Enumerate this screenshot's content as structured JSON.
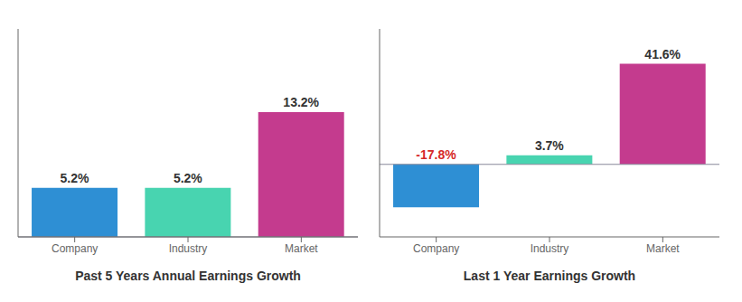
{
  "chart_data": [
    {
      "type": "bar",
      "title": "Past 5 Years Annual Earnings Growth",
      "categories": [
        "Company",
        "Industry",
        "Market"
      ],
      "values": [
        5.2,
        5.2,
        13.2
      ],
      "value_labels": [
        "5.2%",
        "5.2%",
        "13.2%"
      ],
      "colors": [
        "#2e8fd4",
        "#48d4b0",
        "#c43b8e"
      ],
      "ylim": [
        0,
        22
      ],
      "data_labels": true,
      "tick_labels": "x",
      "grid": false
    },
    {
      "type": "bar",
      "title": "Last 1 Year Earnings Growth",
      "categories": [
        "Company",
        "Industry",
        "Market"
      ],
      "values": [
        -17.8,
        3.7,
        41.6
      ],
      "value_labels": [
        "-17.8%",
        "3.7%",
        "41.6%"
      ],
      "colors": [
        "#2e8fd4",
        "#48d4b0",
        "#c43b8e"
      ],
      "ylim": [
        -30,
        56
      ],
      "data_labels": true,
      "tick_labels": "x",
      "grid": false
    }
  ]
}
